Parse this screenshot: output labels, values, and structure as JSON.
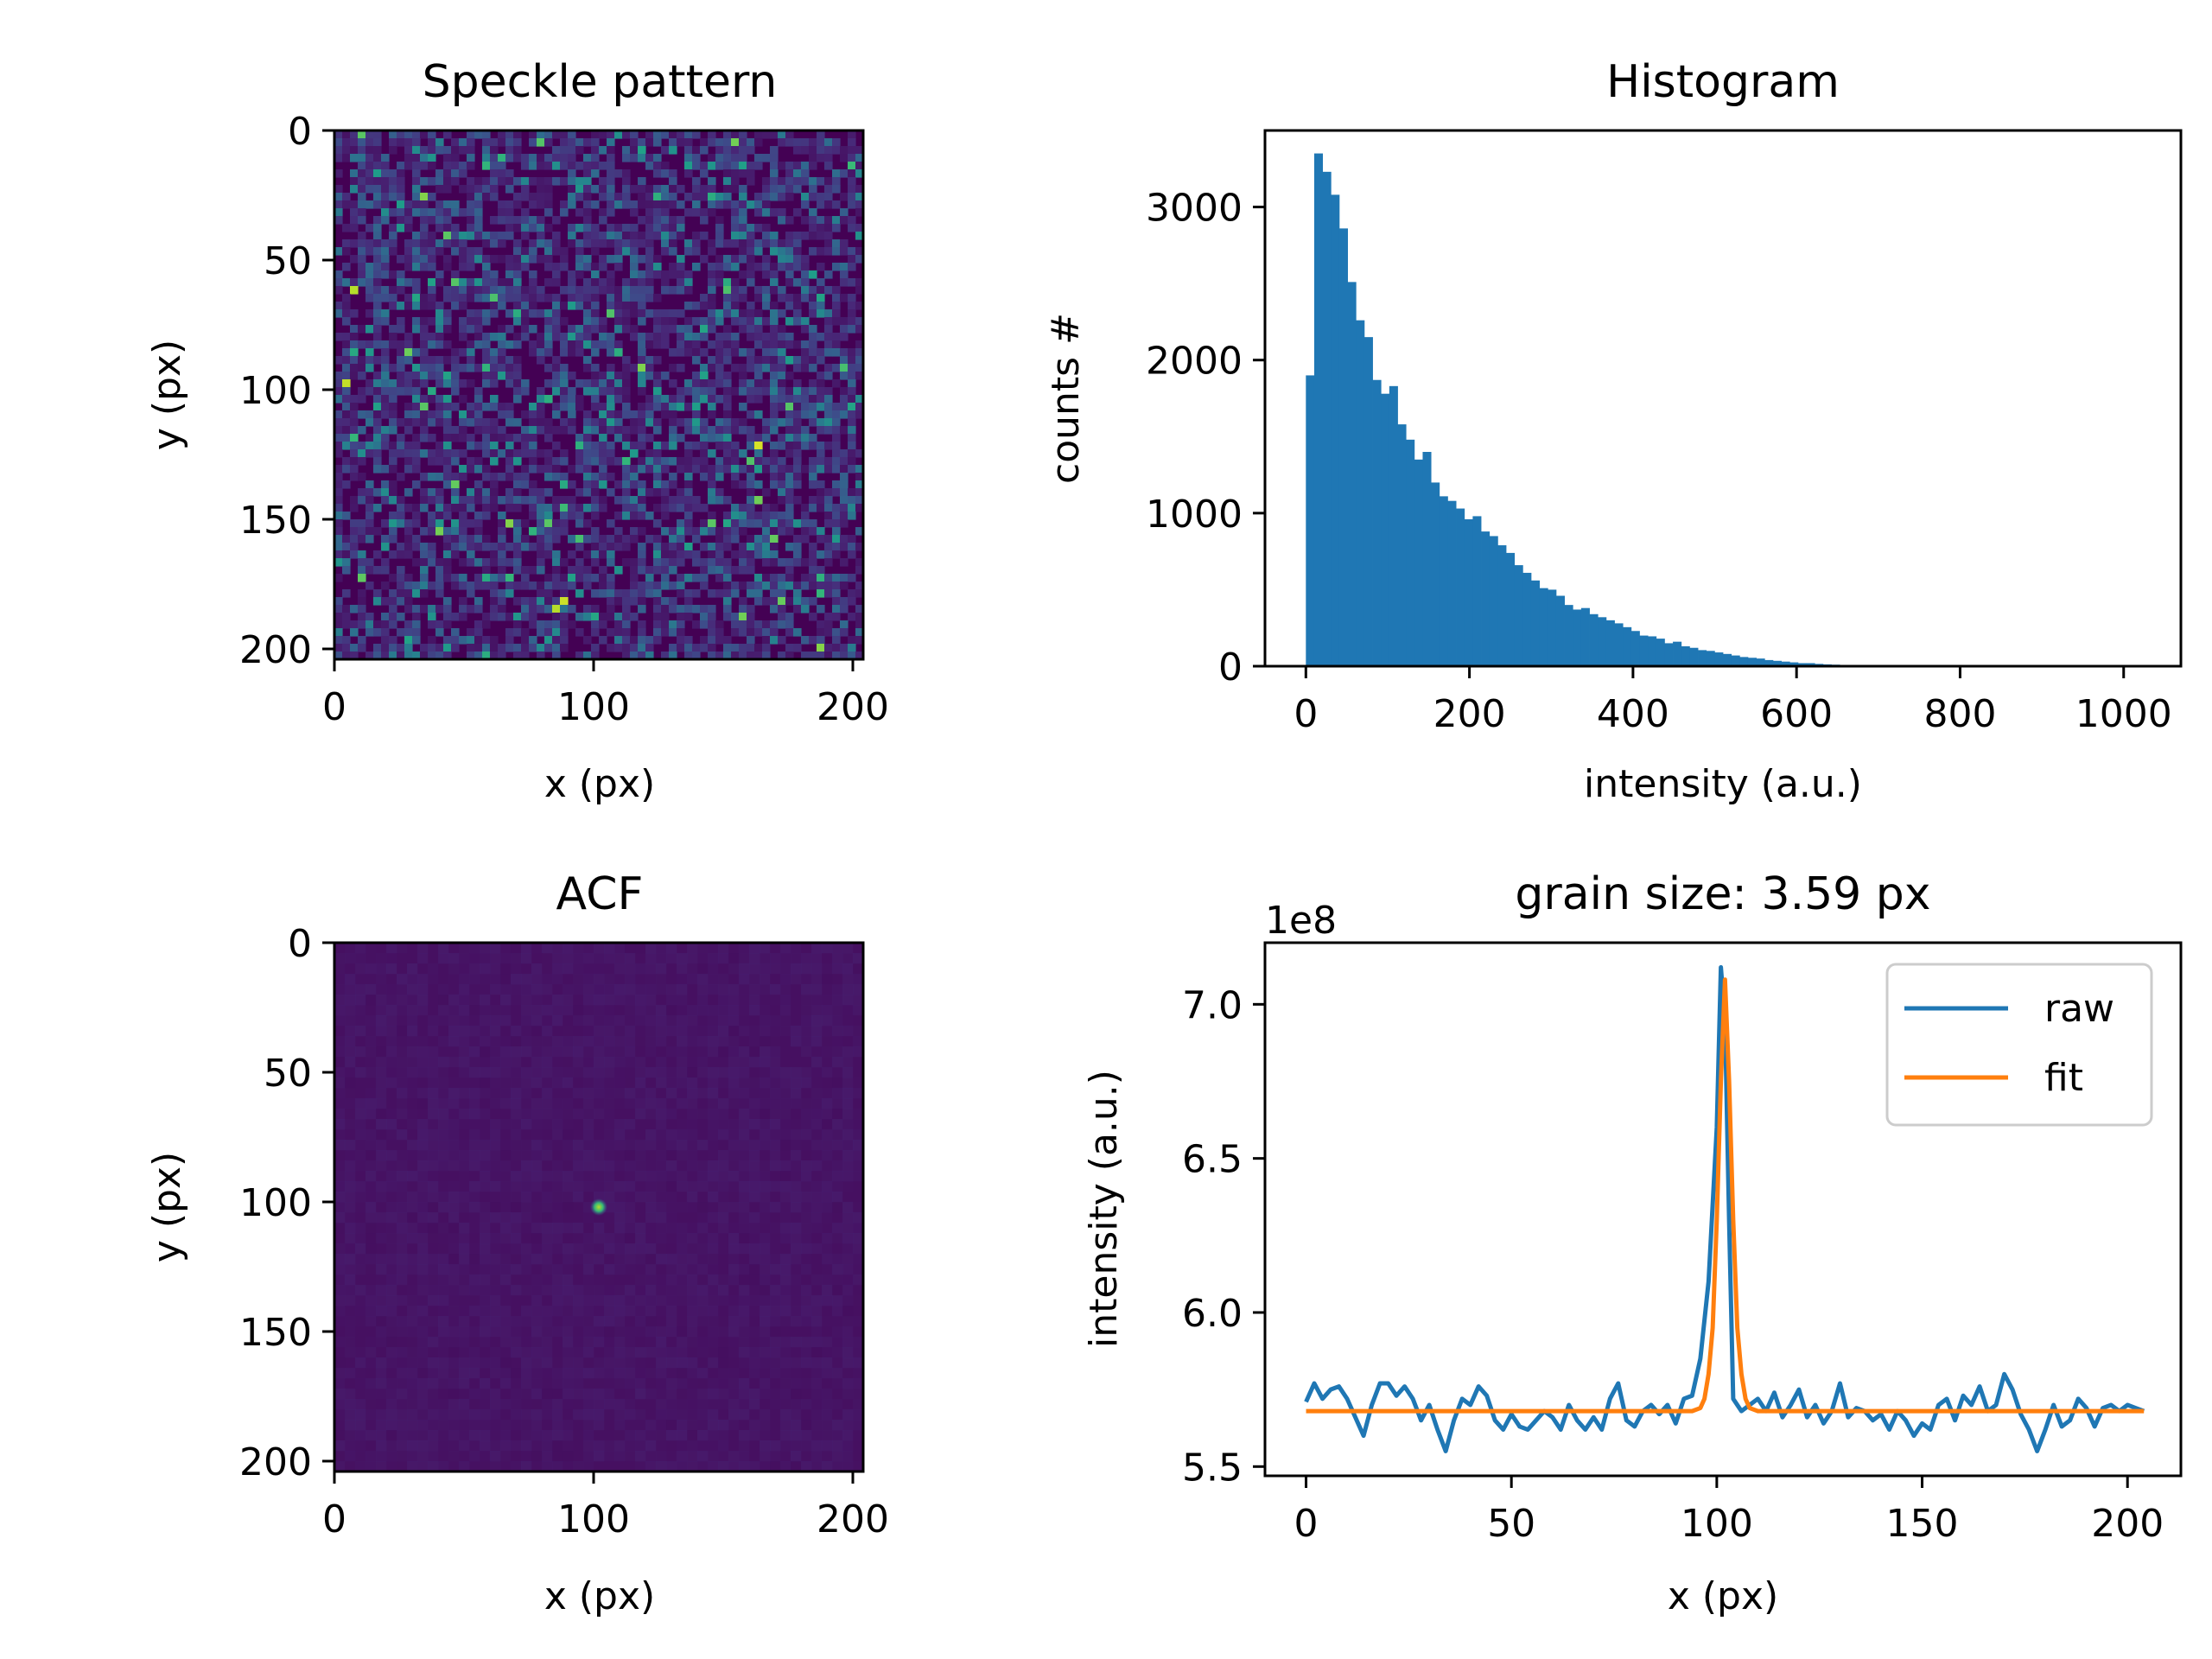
{
  "figure": {
    "background": "#ffffff"
  },
  "chart_data": [
    {
      "type": "heatmap",
      "title": "Speckle pattern",
      "xlabel": "x (px)",
      "ylabel": "y (px)",
      "xlim": [
        0,
        204
      ],
      "ylim": [
        0,
        204
      ],
      "y_inverted": true,
      "xticks": [
        0,
        100,
        200
      ],
      "yticks": [
        0,
        50,
        100,
        150,
        200
      ],
      "colormap": "viridis",
      "description_values": "random speckle intensity field"
    },
    {
      "type": "bar",
      "title": "Histogram",
      "xlabel": "intensity (a.u.)",
      "ylabel": "counts #",
      "xlim": [
        -50,
        1070
      ],
      "ylim": [
        0,
        3500
      ],
      "xticks": [
        0,
        200,
        400,
        600,
        800,
        1000
      ],
      "yticks": [
        0,
        1000,
        2000,
        3000
      ],
      "bin_width": 10.2,
      "bin_start": 0,
      "color": "#1f77b4",
      "values": [
        1900,
        3350,
        3230,
        3080,
        2860,
        2510,
        2260,
        2150,
        1870,
        1780,
        1830,
        1580,
        1480,
        1350,
        1400,
        1200,
        1110,
        1080,
        1030,
        960,
        980,
        880,
        850,
        790,
        740,
        660,
        610,
        560,
        510,
        500,
        460,
        400,
        370,
        380,
        340,
        320,
        300,
        280,
        255,
        230,
        200,
        195,
        180,
        150,
        160,
        130,
        120,
        105,
        100,
        90,
        80,
        70,
        60,
        55,
        50,
        40,
        35,
        30,
        25,
        20,
        20,
        15,
        12,
        10,
        8,
        6,
        5,
        4,
        3,
        2,
        2,
        2,
        1,
        1,
        1,
        1,
        1,
        1,
        0,
        0,
        0,
        0,
        0,
        0,
        0,
        0,
        0,
        0,
        0,
        0,
        0,
        0,
        0,
        0,
        0,
        0,
        0,
        0,
        0,
        0
      ]
    },
    {
      "type": "heatmap",
      "title": "ACF",
      "xlabel": "x (px)",
      "ylabel": "y (px)",
      "xlim": [
        0,
        204
      ],
      "ylim": [
        0,
        204
      ],
      "y_inverted": true,
      "xticks": [
        0,
        100,
        200
      ],
      "yticks": [
        0,
        50,
        100,
        150,
        200
      ],
      "colormap": "viridis",
      "peak": [
        102,
        102
      ]
    },
    {
      "type": "line",
      "title": "grain size: 3.59 px",
      "xlabel": "x (px)",
      "ylabel": "intensity (a.u.)",
      "offset_text": "1e8",
      "xlim": [
        -10,
        213
      ],
      "ylim": [
        5.47,
        7.2
      ],
      "xticks": [
        0,
        50,
        100,
        150,
        200
      ],
      "yticks": [
        5.5,
        6.0,
        6.5,
        7.0
      ],
      "ytick_labels": [
        "5.5",
        "6.0",
        "6.5",
        "7.0"
      ],
      "legend_position": "upper right",
      "series": [
        {
          "name": "raw",
          "color": "#1f77b4",
          "x": [
            0,
            2,
            4,
            6,
            8,
            10,
            12,
            14,
            16,
            18,
            20,
            22,
            24,
            26,
            28,
            30,
            32,
            34,
            36,
            38,
            40,
            42,
            44,
            46,
            48,
            50,
            52,
            54,
            56,
            58,
            60,
            62,
            64,
            66,
            68,
            70,
            72,
            74,
            76,
            78,
            80,
            82,
            84,
            86,
            88,
            90,
            92,
            94,
            96,
            98,
            100,
            101,
            102,
            103,
            104,
            106,
            108,
            110,
            112,
            114,
            116,
            118,
            120,
            122,
            124,
            126,
            128,
            130,
            132,
            134,
            136,
            138,
            140,
            142,
            144,
            146,
            148,
            150,
            152,
            154,
            156,
            158,
            160,
            162,
            164,
            166,
            168,
            170,
            172,
            174,
            176,
            178,
            180,
            182,
            184,
            186,
            188,
            190,
            192,
            194,
            196,
            198,
            200,
            202,
            204
          ],
          "values": [
            5.71,
            5.77,
            5.72,
            5.75,
            5.76,
            5.72,
            5.66,
            5.6,
            5.7,
            5.77,
            5.77,
            5.73,
            5.76,
            5.72,
            5.65,
            5.7,
            5.62,
            5.55,
            5.65,
            5.72,
            5.7,
            5.76,
            5.73,
            5.65,
            5.62,
            5.67,
            5.63,
            5.62,
            5.65,
            5.68,
            5.66,
            5.62,
            5.7,
            5.65,
            5.62,
            5.66,
            5.62,
            5.72,
            5.77,
            5.65,
            5.63,
            5.68,
            5.7,
            5.67,
            5.7,
            5.64,
            5.72,
            5.73,
            5.85,
            6.1,
            6.6,
            7.12,
            6.95,
            6.3,
            5.72,
            5.68,
            5.7,
            5.72,
            5.68,
            5.74,
            5.66,
            5.7,
            5.75,
            5.66,
            5.7,
            5.64,
            5.68,
            5.77,
            5.66,
            5.69,
            5.68,
            5.65,
            5.67,
            5.62,
            5.68,
            5.65,
            5.6,
            5.64,
            5.62,
            5.7,
            5.72,
            5.65,
            5.73,
            5.7,
            5.76,
            5.68,
            5.7,
            5.8,
            5.75,
            5.67,
            5.62,
            5.55,
            5.62,
            5.7,
            5.63,
            5.65,
            5.72,
            5.69,
            5.63,
            5.69,
            5.7,
            5.68,
            5.7,
            5.69,
            5.68
          ]
        },
        {
          "name": "fit",
          "color": "#ff7f0e",
          "x": [
            0,
            94,
            96,
            97,
            98,
            99,
            100,
            101,
            102,
            103,
            104,
            105,
            106,
            107,
            108,
            110,
            204
          ],
          "values": [
            5.68,
            5.68,
            5.69,
            5.72,
            5.8,
            5.95,
            6.3,
            6.75,
            7.08,
            6.75,
            6.3,
            5.95,
            5.8,
            5.72,
            5.69,
            5.68,
            5.68
          ]
        }
      ]
    }
  ]
}
